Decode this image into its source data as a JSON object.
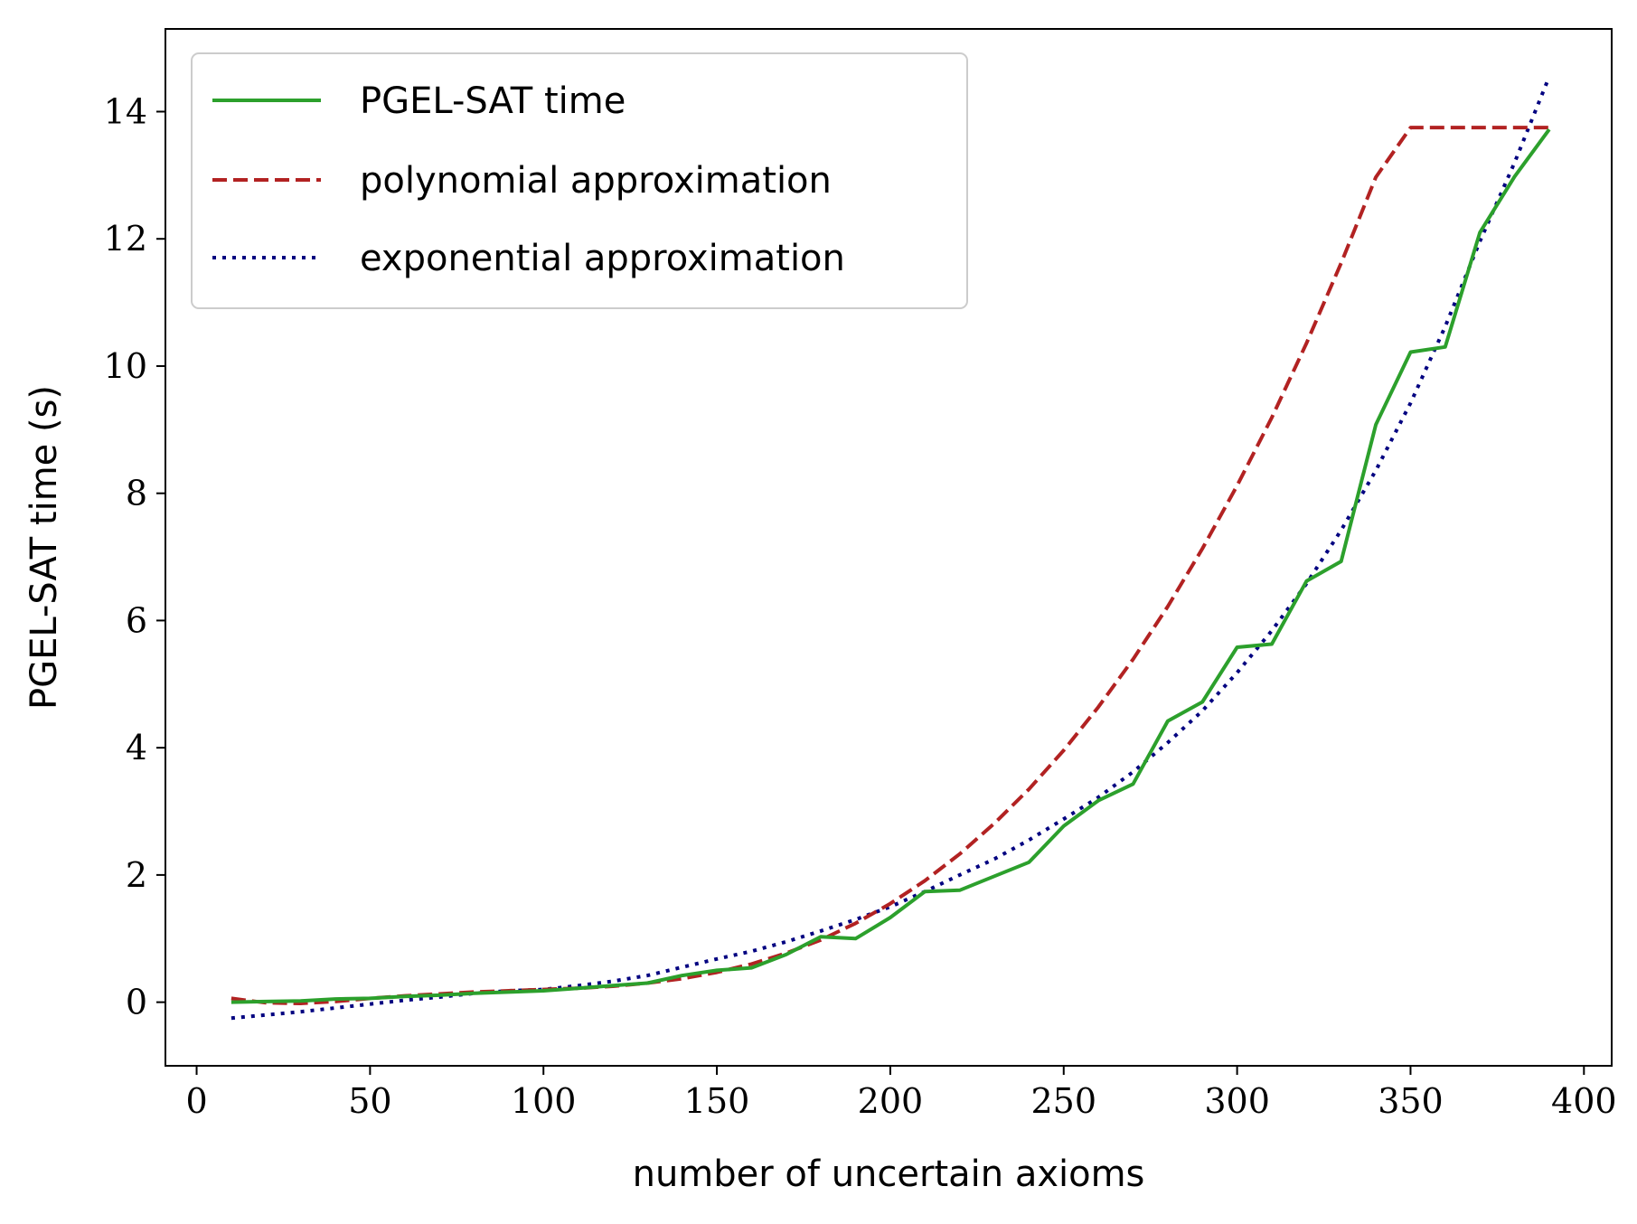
{
  "chart_data": {
    "type": "line",
    "title": "",
    "xlabel": "number of uncertain axioms",
    "ylabel": "PGEL-SAT time (s)",
    "xlim": [
      -9,
      408
    ],
    "ylim": [
      -1,
      15.3
    ],
    "xticks": [
      0,
      50,
      100,
      150,
      200,
      250,
      300,
      350,
      400
    ],
    "yticks": [
      0,
      2,
      4,
      6,
      8,
      10,
      12,
      14
    ],
    "grid": false,
    "legend_position": "top-left",
    "series": [
      {
        "name": "PGEL-SAT time",
        "color": "#2ca02c",
        "style": "solid",
        "x": [
          10,
          20,
          30,
          40,
          50,
          60,
          70,
          80,
          90,
          100,
          110,
          120,
          130,
          140,
          150,
          160,
          170,
          180,
          190,
          200,
          210,
          220,
          230,
          240,
          250,
          260,
          270,
          280,
          290,
          300,
          310,
          320,
          330,
          340,
          350,
          360,
          370,
          380,
          390
        ],
        "y": [
          0.0,
          0.01,
          0.02,
          0.05,
          0.06,
          0.09,
          0.11,
          0.14,
          0.16,
          0.18,
          0.22,
          0.26,
          0.3,
          0.42,
          0.5,
          0.54,
          0.75,
          1.03,
          1.0,
          1.33,
          1.74,
          1.76,
          1.98,
          2.2,
          2.77,
          3.17,
          3.43,
          4.42,
          4.72,
          5.58,
          5.63,
          6.62,
          6.93,
          9.08,
          10.22,
          10.3,
          12.1,
          12.98,
          13.72
        ]
      },
      {
        "name": "polynomial approximation",
        "color": "#b22222",
        "style": "dashed",
        "x": [
          10,
          20,
          30,
          40,
          50,
          60,
          70,
          80,
          90,
          100,
          110,
          120,
          130,
          140,
          150,
          160,
          170,
          180,
          190,
          200,
          210,
          220,
          230,
          240,
          250,
          260,
          270,
          280,
          290,
          300,
          310,
          320,
          330,
          340,
          350,
          360,
          370,
          380,
          390
        ],
        "y": [
          0.06,
          -0.01,
          -0.02,
          0.01,
          0.06,
          0.1,
          0.13,
          0.16,
          0.18,
          0.2,
          0.22,
          0.25,
          0.3,
          0.37,
          0.47,
          0.6,
          0.77,
          0.98,
          1.24,
          1.55,
          1.91,
          2.33,
          2.81,
          3.35,
          3.96,
          4.64,
          5.39,
          6.22,
          7.13,
          8.12,
          9.19,
          10.36,
          11.62,
          12.97,
          13.75,
          13.75,
          13.75,
          13.75,
          13.75
        ]
      },
      {
        "name": "exponential approximation",
        "color": "#000080",
        "style": "dotted",
        "x": [
          10,
          20,
          30,
          40,
          50,
          60,
          70,
          80,
          90,
          100,
          110,
          120,
          130,
          140,
          150,
          160,
          170,
          180,
          190,
          200,
          210,
          220,
          230,
          240,
          250,
          260,
          270,
          280,
          290,
          300,
          310,
          320,
          330,
          340,
          350,
          360,
          370,
          380,
          390
        ],
        "y": [
          -0.25,
          -0.2,
          -0.15,
          -0.09,
          -0.03,
          0.03,
          0.08,
          0.14,
          0.18,
          0.2,
          0.26,
          0.33,
          0.42,
          0.55,
          0.68,
          0.8,
          0.95,
          1.12,
          1.3,
          1.5,
          1.74,
          2.0,
          2.25,
          2.55,
          2.88,
          3.22,
          3.62,
          4.08,
          4.58,
          5.18,
          5.84,
          6.58,
          7.42,
          8.36,
          9.42,
          10.62,
          11.96,
          13.2,
          14.55
        ]
      }
    ]
  }
}
